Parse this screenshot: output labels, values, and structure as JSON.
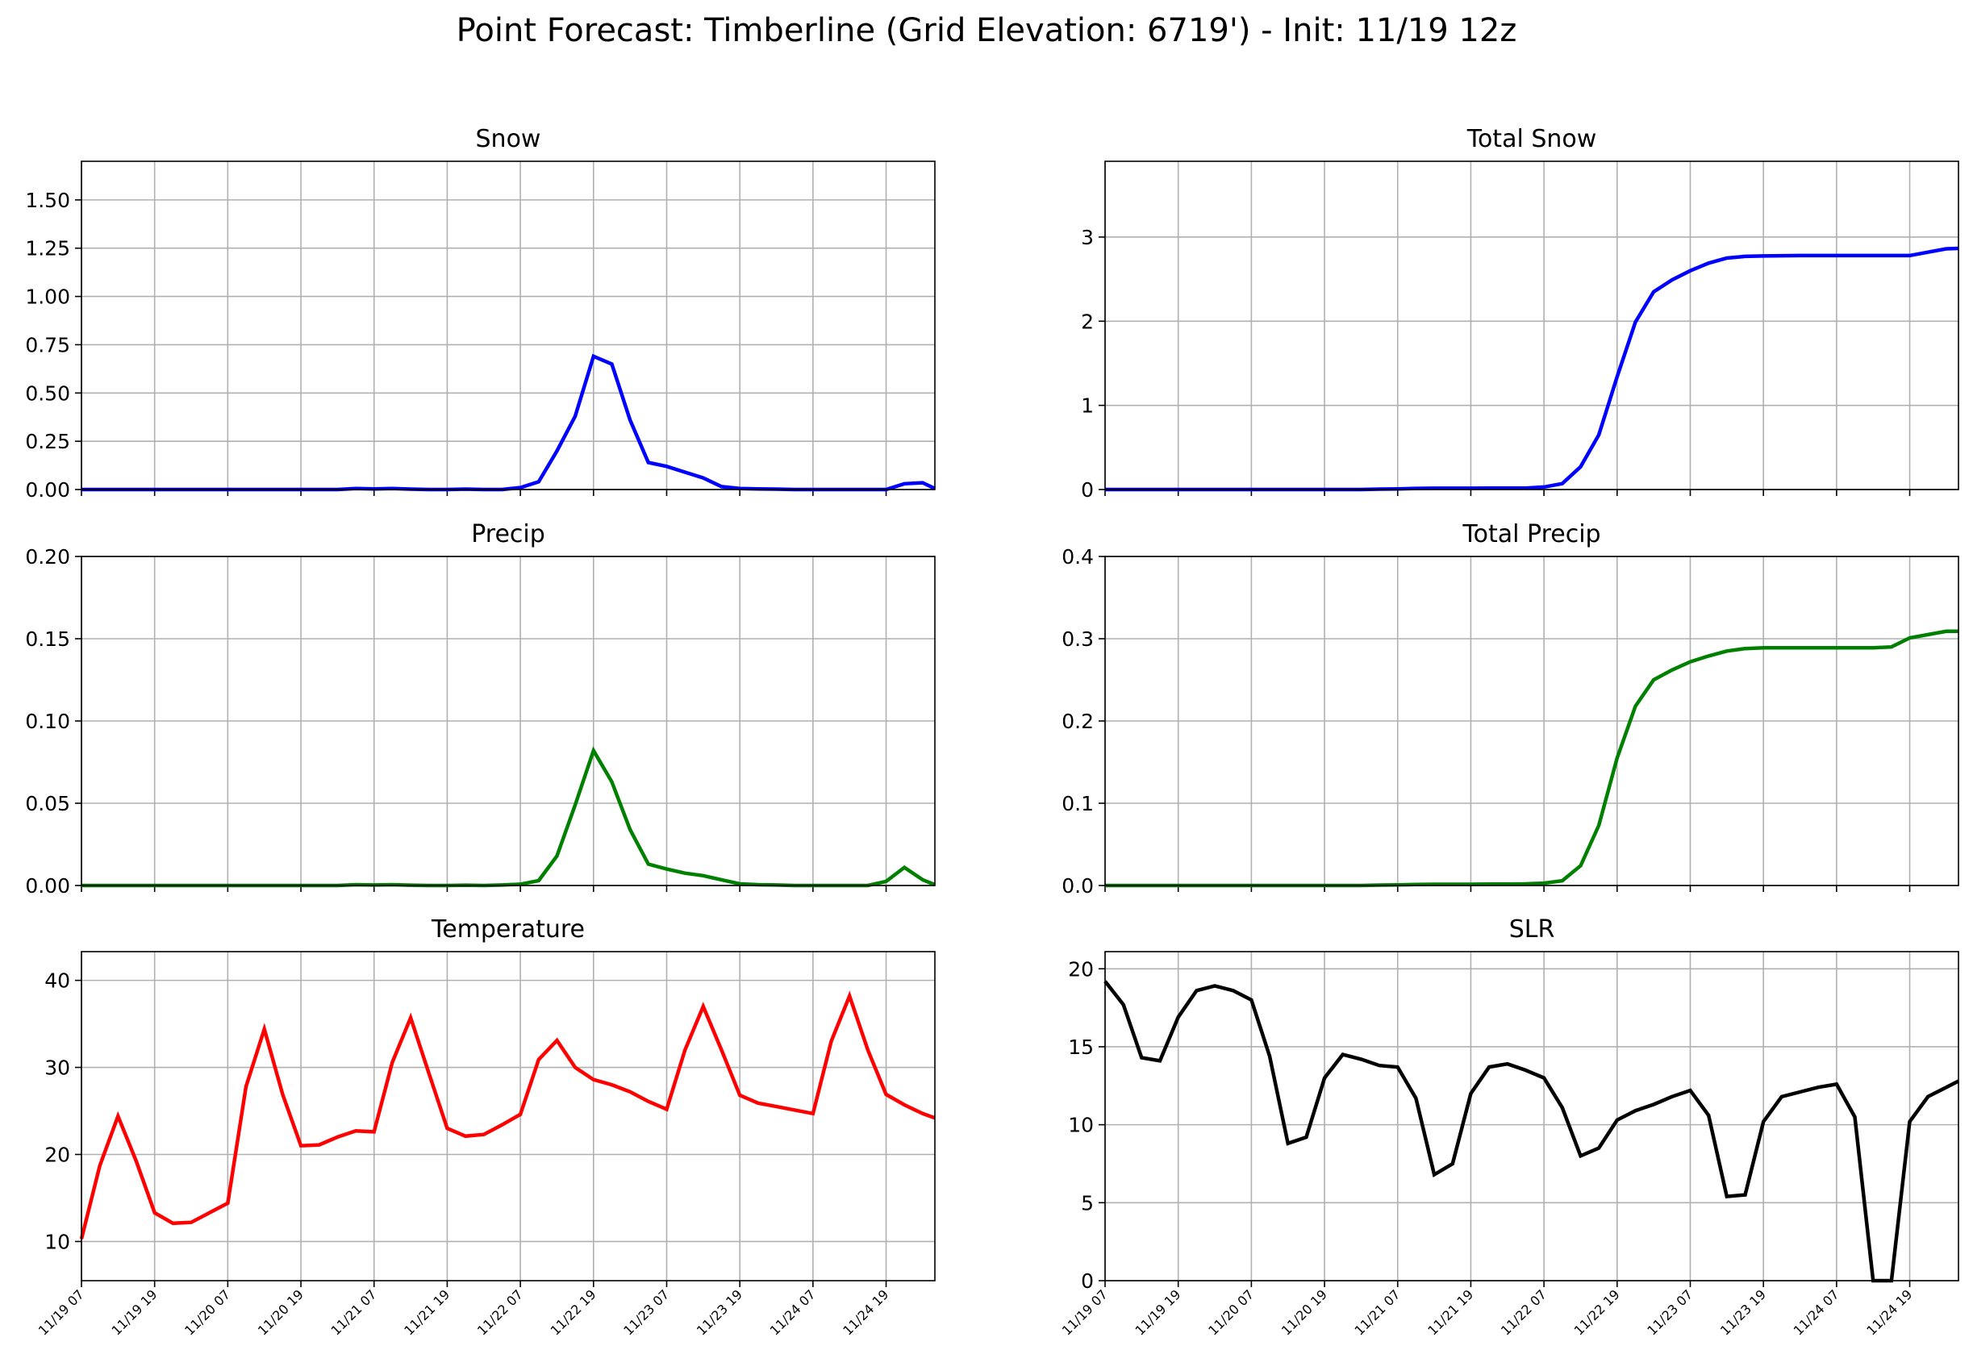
{
  "figure": {
    "title": "Point Forecast: Timberline (Grid Elevation: 6719') - Init: 11/19 12z"
  },
  "x_tick_labels": [
    "11/19 07",
    "11/19 19",
    "11/20 07",
    "11/20 19",
    "11/21 07",
    "11/21 19",
    "11/22 07",
    "11/22 19",
    "11/23 07",
    "11/23 19",
    "11/24 07",
    "11/24 19"
  ],
  "chart_data": [
    {
      "id": "snow",
      "type": "line",
      "title": "Snow",
      "color": "#0000ff",
      "x_unit": "hours from 11/19 07",
      "xlim": [
        0,
        140
      ],
      "ylim": [
        0,
        1.7
      ],
      "yticks": [
        0,
        0.25,
        0.5,
        0.75,
        1.0,
        1.25,
        1.5
      ],
      "ytick_labels": [
        "0.00",
        "0.25",
        "0.50",
        "0.75",
        "1.00",
        "1.25",
        "1.50"
      ],
      "grid": true,
      "x": [
        0,
        3,
        6,
        9,
        12,
        15,
        18,
        21,
        24,
        27,
        30,
        33,
        36,
        39,
        42,
        45,
        48,
        51,
        54,
        57,
        60,
        63,
        66,
        69,
        72,
        75,
        78,
        81,
        84,
        87,
        90,
        93,
        96,
        99,
        102,
        105,
        108,
        111,
        114,
        117,
        120,
        123,
        126,
        129,
        132,
        135,
        138,
        140
      ],
      "y": [
        0,
        0,
        0,
        0,
        0,
        0,
        0,
        0,
        0,
        0,
        0,
        0,
        0,
        0,
        0,
        0.005,
        0.003,
        0.005,
        0.002,
        0,
        0,
        0.002,
        0,
        0,
        0.01,
        0.04,
        0.2,
        0.38,
        0.69,
        0.65,
        0.36,
        0.14,
        0.12,
        0.09,
        0.06,
        0.015,
        0.005,
        0.003,
        0.002,
        0,
        0,
        0,
        0,
        0,
        0,
        0.03,
        0.035,
        0.005
      ]
    },
    {
      "id": "total-snow",
      "type": "line",
      "title": "Total Snow",
      "color": "#0000ff",
      "x_unit": "hours from 11/19 07",
      "xlim": [
        0,
        140
      ],
      "ylim": [
        0,
        3.9
      ],
      "yticks": [
        0,
        1,
        2,
        3
      ],
      "ytick_labels": [
        "0",
        "1",
        "2",
        "3"
      ],
      "grid": true,
      "x": [
        0,
        3,
        6,
        9,
        12,
        15,
        18,
        21,
        24,
        27,
        30,
        33,
        36,
        39,
        42,
        45,
        48,
        51,
        54,
        57,
        60,
        63,
        66,
        69,
        72,
        75,
        78,
        81,
        84,
        87,
        90,
        93,
        96,
        99,
        102,
        105,
        108,
        111,
        114,
        117,
        120,
        123,
        126,
        129,
        132,
        135,
        138,
        140
      ],
      "y": [
        0,
        0,
        0,
        0,
        0,
        0,
        0,
        0,
        0,
        0,
        0,
        0,
        0,
        0,
        0,
        0.005,
        0.008,
        0.013,
        0.015,
        0.015,
        0.015,
        0.017,
        0.017,
        0.017,
        0.03,
        0.07,
        0.27,
        0.65,
        1.34,
        1.99,
        2.35,
        2.49,
        2.6,
        2.69,
        2.75,
        2.77,
        2.775,
        2.778,
        2.78,
        2.78,
        2.78,
        2.78,
        2.78,
        2.78,
        2.78,
        2.82,
        2.86,
        2.865
      ]
    },
    {
      "id": "precip",
      "type": "line",
      "title": "Precip",
      "color": "#008000",
      "x_unit": "hours from 11/19 07",
      "xlim": [
        0,
        140
      ],
      "ylim": [
        0,
        0.2
      ],
      "yticks": [
        0,
        0.05,
        0.1,
        0.15,
        0.2
      ],
      "ytick_labels": [
        "0.00",
        "0.05",
        "0.10",
        "0.15",
        "0.20"
      ],
      "grid": true,
      "x": [
        0,
        3,
        6,
        9,
        12,
        15,
        18,
        21,
        24,
        27,
        30,
        33,
        36,
        39,
        42,
        45,
        48,
        51,
        54,
        57,
        60,
        63,
        66,
        69,
        72,
        75,
        78,
        81,
        84,
        87,
        90,
        93,
        96,
        99,
        102,
        105,
        108,
        111,
        114,
        117,
        120,
        123,
        126,
        129,
        132,
        135,
        138,
        140
      ],
      "y": [
        0,
        0,
        0,
        0,
        0,
        0,
        0,
        0,
        0,
        0,
        0,
        0,
        0,
        0,
        0,
        0.0005,
        0.0003,
        0.0005,
        0.0002,
        0,
        0,
        0.0002,
        0,
        0.0003,
        0.0008,
        0.003,
        0.018,
        0.049,
        0.082,
        0.063,
        0.034,
        0.013,
        0.01,
        0.0075,
        0.006,
        0.0035,
        0.001,
        0.0005,
        0.0003,
        0,
        0,
        0,
        0,
        0,
        0.0025,
        0.011,
        0.0035,
        0.0005
      ]
    },
    {
      "id": "total-precip",
      "type": "line",
      "title": "Total Precip",
      "color": "#008000",
      "x_unit": "hours from 11/19 07",
      "xlim": [
        0,
        140
      ],
      "ylim": [
        0,
        0.4
      ],
      "yticks": [
        0,
        0.1,
        0.2,
        0.3,
        0.4
      ],
      "ytick_labels": [
        "0.0",
        "0.1",
        "0.2",
        "0.3",
        "0.4"
      ],
      "grid": true,
      "x": [
        0,
        3,
        6,
        9,
        12,
        15,
        18,
        21,
        24,
        27,
        30,
        33,
        36,
        39,
        42,
        45,
        48,
        51,
        54,
        57,
        60,
        63,
        66,
        69,
        72,
        75,
        78,
        81,
        84,
        87,
        90,
        93,
        96,
        99,
        102,
        105,
        108,
        111,
        114,
        117,
        120,
        123,
        126,
        129,
        132,
        135,
        138,
        140
      ],
      "y": [
        0,
        0,
        0,
        0,
        0,
        0,
        0,
        0,
        0,
        0,
        0,
        0,
        0,
        0,
        0,
        0.0005,
        0.0008,
        0.0013,
        0.0015,
        0.0015,
        0.0015,
        0.0017,
        0.0017,
        0.002,
        0.0028,
        0.0058,
        0.024,
        0.073,
        0.155,
        0.218,
        0.25,
        0.262,
        0.272,
        0.279,
        0.285,
        0.288,
        0.289,
        0.289,
        0.289,
        0.289,
        0.289,
        0.289,
        0.289,
        0.29,
        0.301,
        0.305,
        0.309,
        0.309
      ]
    },
    {
      "id": "temperature",
      "type": "line",
      "title": "Temperature",
      "color": "#ff0000",
      "x_unit": "hours from 11/19 07",
      "xlim": [
        0,
        140
      ],
      "ylim": [
        5.5,
        43.3
      ],
      "yticks": [
        10,
        20,
        30,
        40
      ],
      "ytick_labels": [
        "10",
        "20",
        "30",
        "40"
      ],
      "grid": true,
      "x": [
        0,
        3,
        6,
        9,
        12,
        15,
        18,
        21,
        24,
        27,
        30,
        33,
        36,
        39,
        42,
        45,
        48,
        51,
        54,
        57,
        60,
        63,
        66,
        69,
        72,
        75,
        78,
        81,
        84,
        87,
        90,
        93,
        96,
        99,
        102,
        105,
        108,
        111,
        114,
        117,
        120,
        123,
        126,
        129,
        132,
        135,
        138,
        140
      ],
      "y": [
        10.3,
        18.7,
        24.4,
        19.2,
        13.3,
        12.1,
        12.2,
        13.3,
        14.4,
        27.8,
        34.4,
        26.9,
        21.0,
        21.1,
        22.0,
        22.7,
        22.6,
        30.6,
        35.7,
        29.3,
        23.0,
        22.1,
        22.3,
        23.4,
        24.6,
        30.9,
        33.1,
        30.0,
        28.6,
        28.0,
        27.2,
        26.1,
        25.2,
        32.0,
        37.0,
        32.0,
        26.8,
        25.9,
        25.5,
        25.1,
        24.7,
        33.0,
        38.2,
        32.0,
        26.9,
        25.7,
        24.7,
        24.2
      ]
    },
    {
      "id": "slr",
      "type": "line",
      "title": "SLR",
      "color": "#000000",
      "x_unit": "hours from 11/19 07",
      "xlim": [
        0,
        140
      ],
      "ylim": [
        0,
        21.1
      ],
      "yticks": [
        0,
        5,
        10,
        15,
        20
      ],
      "ytick_labels": [
        "0",
        "5",
        "10",
        "15",
        "20"
      ],
      "grid": true,
      "x": [
        0,
        3,
        6,
        9,
        12,
        15,
        18,
        21,
        24,
        27,
        30,
        33,
        36,
        39,
        42,
        45,
        48,
        51,
        54,
        57,
        60,
        63,
        66,
        69,
        72,
        75,
        78,
        81,
        84,
        87,
        90,
        93,
        96,
        99,
        102,
        105,
        108,
        111,
        114,
        117,
        120,
        123,
        126,
        129,
        132,
        135,
        138,
        140
      ],
      "y": [
        19.2,
        17.7,
        14.3,
        14.1,
        16.9,
        18.6,
        18.9,
        18.6,
        18.0,
        14.4,
        8.8,
        9.2,
        13.0,
        14.5,
        14.2,
        13.8,
        13.7,
        11.7,
        6.8,
        7.5,
        12.0,
        13.7,
        13.9,
        13.5,
        13.0,
        11.1,
        8.0,
        8.5,
        10.3,
        10.9,
        11.3,
        11.8,
        12.2,
        10.6,
        5.4,
        5.5,
        10.2,
        11.8,
        12.1,
        12.4,
        12.6,
        10.5,
        0,
        0,
        10.2,
        11.8,
        12.4,
        12.8
      ]
    }
  ]
}
